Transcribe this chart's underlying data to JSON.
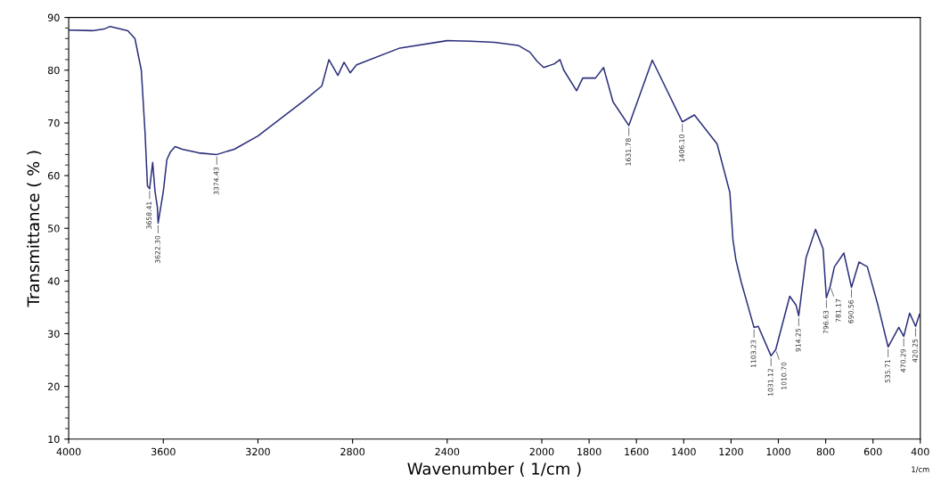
{
  "chart_data": {
    "type": "line",
    "xlabel": "Wavenumber ( 1/cm )",
    "ylabel": "Transmittance ( % )",
    "series": [
      {
        "color": "#2b2f7a",
        "x": [
          4000,
          3900,
          3850,
          3825,
          3750,
          3720,
          3693,
          3677,
          3667,
          3658,
          3645,
          3635,
          3625,
          3622,
          3600,
          3585,
          3570,
          3550,
          3520,
          3450,
          3374,
          3300,
          3200,
          3000,
          2930,
          2900,
          2862,
          2836,
          2810,
          2783,
          2600,
          2400,
          2300,
          2200,
          2100,
          2050,
          2020,
          1992,
          1947,
          1923,
          1907,
          1853,
          1827,
          1773,
          1739,
          1699,
          1632,
          1533,
          1406,
          1355,
          1259,
          1205,
          1192,
          1179,
          1157,
          1103,
          1085,
          1031,
          1011,
          952,
          925,
          914,
          883,
          843,
          811,
          797,
          781,
          763,
          723,
          691,
          659,
          624,
          579,
          536,
          491,
          470,
          445,
          420,
          403,
          400
        ],
        "values": [
          87.6,
          87.5,
          87.8,
          88.3,
          87.5,
          86,
          80,
          68,
          58,
          57.5,
          62.5,
          57,
          54,
          51,
          57,
          63,
          64.5,
          65.5,
          65,
          64.3,
          64,
          65,
          67.5,
          74.4,
          77,
          82,
          79,
          81.5,
          79.5,
          81,
          84.2,
          85.6,
          85.5,
          85.3,
          84.7,
          83.4,
          81.7,
          80.5,
          81.2,
          82,
          80,
          76.1,
          78.5,
          78.5,
          80.5,
          74,
          69.5,
          81.9,
          70.2,
          71.5,
          66,
          56.8,
          47.8,
          43.9,
          39.8,
          31.2,
          31.4,
          25.8,
          27,
          37.1,
          35.4,
          33.4,
          44.4,
          49.8,
          46.1,
          36.8,
          39,
          42.7,
          45.3,
          38.8,
          43.6,
          42.7,
          35.4,
          27.5,
          31.2,
          29.5,
          33.9,
          31.4,
          33.7,
          33.5
        ]
      }
    ],
    "xlim": [
      4000,
      400
    ],
    "xticks": [
      4000,
      3600,
      3200,
      2800,
      2400,
      2000,
      1800,
      1600,
      1400,
      1200,
      1000,
      800,
      600,
      400
    ],
    "ylim": [
      10,
      90
    ],
    "yticks": [
      10,
      20,
      30,
      40,
      50,
      60,
      70,
      80,
      90
    ],
    "grid": false,
    "marker": "none",
    "line_style": "solid",
    "annotations": [
      {
        "text": "3658.41",
        "x": 3658,
        "y": 57.5
      },
      {
        "text": "3622.30",
        "x": 3622,
        "y": 51
      },
      {
        "text": "3374.43",
        "x": 3374,
        "y": 64
      },
      {
        "text": "1631.78",
        "x": 1632,
        "y": 69.5
      },
      {
        "text": "1406.10",
        "x": 1406,
        "y": 70.2
      },
      {
        "text": "1103.23",
        "x": 1103,
        "y": 31.2
      },
      {
        "text": "1031.12",
        "x": 1031,
        "y": 25.8
      },
      {
        "text": "1010.70",
        "x": 1011,
        "y": 27
      },
      {
        "text": "914.25",
        "x": 914,
        "y": 33.4
      },
      {
        "text": "796.63",
        "x": 797,
        "y": 36.8
      },
      {
        "text": "781.17",
        "x": 781,
        "y": 39
      },
      {
        "text": "690.56",
        "x": 691,
        "y": 38.8
      },
      {
        "text": "535.71",
        "x": 536,
        "y": 27.5
      },
      {
        "text": "470.29",
        "x": 470,
        "y": 29.5
      },
      {
        "text": "420.25",
        "x": 420,
        "y": 31.4
      },
      "1/cm"
    ]
  }
}
